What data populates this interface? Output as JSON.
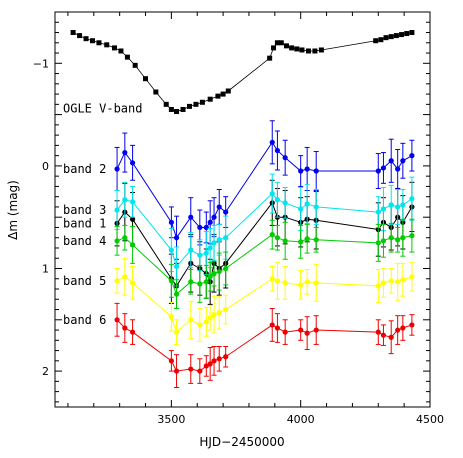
{
  "chart_data": {
    "type": "scatter",
    "xlabel": "HJD−2450000",
    "ylabel": "Δm (mag)",
    "xlim": [
      3050,
      4500
    ],
    "ylim": [
      2.35,
      -1.5
    ],
    "y_inverted": true,
    "grid": false,
    "x_ticks": [
      3500,
      4000,
      4500
    ],
    "x_tick_labels": [
      "3500",
      "4000",
      "4500"
    ],
    "y_ticks": [
      -1,
      0,
      1,
      2
    ],
    "y_tick_labels": [
      "−1",
      "0",
      "1",
      "2"
    ],
    "ogle": {
      "name": "OGLE V-band",
      "color": "#000000",
      "x": [
        3120,
        3145,
        3170,
        3195,
        3220,
        3250,
        3280,
        3305,
        3330,
        3360,
        3400,
        3440,
        3480,
        3500,
        3520,
        3545,
        3570,
        3595,
        3620,
        3650,
        3680,
        3700,
        3720,
        3880,
        3895,
        3910,
        3925,
        3945,
        3965,
        3985,
        4005,
        4030,
        4055,
        4080,
        4290,
        4310,
        4330,
        4350,
        4370,
        4390,
        4410,
        4430
      ],
      "y": [
        -1.3,
        -1.27,
        -1.24,
        -1.22,
        -1.2,
        -1.18,
        -1.15,
        -1.12,
        -1.06,
        -0.98,
        -0.85,
        -0.72,
        -0.6,
        -0.55,
        -0.53,
        -0.55,
        -0.58,
        -0.6,
        -0.62,
        -0.65,
        -0.68,
        -0.7,
        -0.73,
        -1.05,
        -1.15,
        -1.2,
        -1.2,
        -1.17,
        -1.15,
        -1.14,
        -1.13,
        -1.12,
        -1.12,
        -1.13,
        -1.22,
        -1.23,
        -1.25,
        -1.26,
        -1.27,
        -1.28,
        -1.29,
        -1.3
      ]
    },
    "x": [
      3290,
      3320,
      3350,
      3500,
      3520,
      3575,
      3610,
      3635,
      3650,
      3665,
      3685,
      3710,
      3890,
      3910,
      3940,
      4000,
      4025,
      4060,
      4300,
      4320,
      4350,
      4375,
      4395,
      4430
    ],
    "series": [
      {
        "name": "band 1",
        "color": "#000000",
        "values": [
          0.56,
          0.45,
          0.52,
          1.1,
          1.17,
          0.95,
          1.0,
          1.05,
          1.13,
          0.95,
          1.0,
          0.95,
          0.36,
          0.5,
          0.5,
          0.55,
          0.52,
          0.53,
          0.62,
          0.55,
          0.6,
          0.5,
          0.55,
          0.4
        ]
      },
      {
        "name": "band 2",
        "color": "#0000ee",
        "values": [
          0.03,
          -0.13,
          -0.03,
          0.55,
          0.7,
          0.5,
          0.6,
          0.6,
          0.55,
          0.5,
          0.4,
          0.45,
          -0.23,
          -0.15,
          -0.08,
          0.05,
          0.03,
          0.05,
          0.05,
          0.02,
          -0.05,
          0.03,
          -0.05,
          -0.1
        ]
      },
      {
        "name": "band 3",
        "color": "#00e5ee",
        "values": [
          0.43,
          0.33,
          0.35,
          0.82,
          0.98,
          0.82,
          0.87,
          0.85,
          0.8,
          0.75,
          0.72,
          0.7,
          0.27,
          0.33,
          0.36,
          0.42,
          0.37,
          0.4,
          0.45,
          0.42,
          0.38,
          0.4,
          0.38,
          0.32
        ]
      },
      {
        "name": "band 4",
        "color": "#00cc00",
        "values": [
          0.73,
          0.7,
          0.77,
          1.12,
          1.25,
          1.13,
          1.15,
          1.13,
          1.08,
          1.05,
          1.03,
          1.0,
          0.67,
          0.7,
          0.73,
          0.74,
          0.71,
          0.72,
          0.75,
          0.73,
          0.7,
          0.72,
          0.7,
          0.68
        ]
      },
      {
        "name": "band 5",
        "color": "#ffff00",
        "values": [
          1.12,
          1.08,
          1.14,
          1.47,
          1.62,
          1.5,
          1.55,
          1.52,
          1.48,
          1.45,
          1.43,
          1.4,
          1.1,
          1.12,
          1.14,
          1.16,
          1.13,
          1.14,
          1.17,
          1.14,
          1.12,
          1.13,
          1.11,
          1.08
        ]
      },
      {
        "name": "band 6",
        "color": "#ee0000",
        "values": [
          1.5,
          1.58,
          1.62,
          1.9,
          2.0,
          1.98,
          2.0,
          1.95,
          1.93,
          1.9,
          1.88,
          1.86,
          1.55,
          1.58,
          1.62,
          1.6,
          1.63,
          1.6,
          1.62,
          1.65,
          1.67,
          1.6,
          1.58,
          1.55
        ]
      }
    ]
  }
}
